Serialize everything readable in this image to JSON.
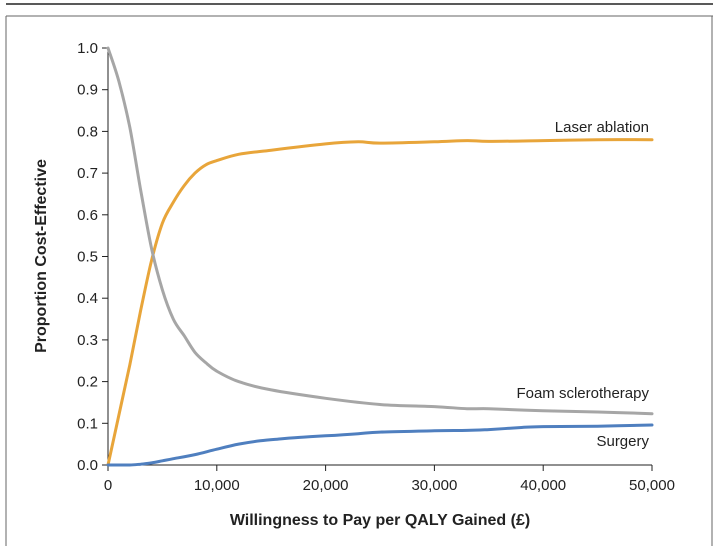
{
  "chart_data": {
    "type": "line",
    "xlabel": "Willingness to Pay per QALY Gained (£)",
    "ylabel": "Proportion Cost-Effective",
    "xlim": [
      0,
      50000
    ],
    "ylim": [
      0,
      1.0
    ],
    "x_ticks": [
      0,
      10000,
      20000,
      30000,
      40000,
      50000
    ],
    "x_tick_labels": [
      "0",
      "10,000",
      "20,000",
      "30,000",
      "40,000",
      "50,000"
    ],
    "y_ticks": [
      0,
      0.1,
      0.2,
      0.3,
      0.4,
      0.5,
      0.6,
      0.7,
      0.8,
      0.9,
      1.0
    ],
    "y_tick_labels": [
      "0.0",
      "0.1",
      "0.2",
      "0.3",
      "0.4",
      "0.5",
      "0.6",
      "0.7",
      "0.8",
      "0.9",
      "1.0"
    ],
    "grid": false,
    "legend": "none (series labeled directly on lines)",
    "series": [
      {
        "name": "Laser ablation",
        "color": "#E8A53A",
        "x": [
          0,
          1000,
          2000,
          3000,
          4000,
          5000,
          6000,
          7000,
          8000,
          9000,
          10000,
          12000,
          15000,
          20000,
          23000,
          25000,
          30000,
          33000,
          35000,
          40000,
          45000,
          50000
        ],
        "y": [
          0.0,
          0.12,
          0.24,
          0.37,
          0.49,
          0.58,
          0.63,
          0.67,
          0.7,
          0.72,
          0.73,
          0.745,
          0.755,
          0.77,
          0.775,
          0.772,
          0.775,
          0.778,
          0.776,
          0.778,
          0.78,
          0.78
        ]
      },
      {
        "name": "Foam sclerotherapy",
        "color": "#A6A6A6",
        "x": [
          0,
          1000,
          2000,
          3000,
          4000,
          5000,
          6000,
          7000,
          8000,
          9000,
          10000,
          12000,
          15000,
          20000,
          25000,
          30000,
          33000,
          35000,
          40000,
          45000,
          50000
        ],
        "y": [
          1.0,
          0.92,
          0.81,
          0.66,
          0.52,
          0.42,
          0.35,
          0.31,
          0.27,
          0.245,
          0.225,
          0.2,
          0.18,
          0.16,
          0.145,
          0.14,
          0.135,
          0.135,
          0.13,
          0.127,
          0.123
        ]
      },
      {
        "name": "Surgery",
        "color": "#4F7FBF",
        "x": [
          0,
          1000,
          2000,
          3000,
          4000,
          5000,
          6000,
          8000,
          10000,
          12000,
          14000,
          16000,
          18000,
          20000,
          23000,
          25000,
          30000,
          33000,
          35000,
          38000,
          40000,
          45000,
          50000
        ],
        "y": [
          0.0,
          0.0,
          0.0,
          0.002,
          0.005,
          0.01,
          0.015,
          0.025,
          0.038,
          0.05,
          0.058,
          0.063,
          0.067,
          0.07,
          0.075,
          0.079,
          0.082,
          0.083,
          0.085,
          0.09,
          0.092,
          0.093,
          0.096
        ]
      }
    ]
  }
}
